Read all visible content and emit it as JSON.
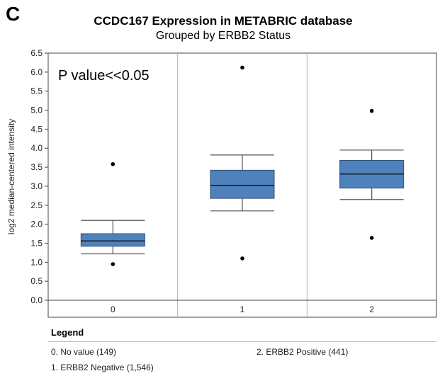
{
  "panel_letter": "C",
  "legend": {
    "title": "Legend",
    "entries": [
      "0. No value (149)",
      "1. ERBB2 Negative (1,546)",
      "2. ERBB2 Positive (441)"
    ]
  },
  "colors": {
    "box_fill": "#4f81bd",
    "box_stroke": "#2f4f6f",
    "divider": "#b0b0b0",
    "axis": "#444444"
  },
  "chart_data": {
    "type": "boxplot",
    "title": "CCDC167 Expression in METABRIC database",
    "subtitle": "Grouped by ERBB2 Status",
    "ylabel": "log2 median-centered intensity",
    "xlabel": "",
    "ylim": [
      0.0,
      6.5
    ],
    "yticks": [
      "0.0",
      "0.5",
      "1.0",
      "1.5",
      "2.0",
      "2.5",
      "3.0",
      "3.5",
      "4.0",
      "4.5",
      "5.0",
      "5.5",
      "6.0",
      "6.5"
    ],
    "annotation": "P value<<0.05",
    "categories": [
      "0",
      "1",
      "2"
    ],
    "boxes": [
      {
        "category": "0",
        "whisker_low": 1.22,
        "q1": 1.42,
        "median": 1.56,
        "q3": 1.75,
        "whisker_high": 2.1,
        "outliers": [
          3.58,
          0.95
        ]
      },
      {
        "category": "1",
        "whisker_low": 2.35,
        "q1": 2.68,
        "median": 3.02,
        "q3": 3.42,
        "whisker_high": 3.82,
        "outliers": [
          6.12,
          1.1
        ]
      },
      {
        "category": "2",
        "whisker_low": 2.65,
        "q1": 2.95,
        "median": 3.32,
        "q3": 3.68,
        "whisker_high": 3.95,
        "outliers": [
          4.98,
          1.64
        ]
      }
    ],
    "grid": false
  }
}
